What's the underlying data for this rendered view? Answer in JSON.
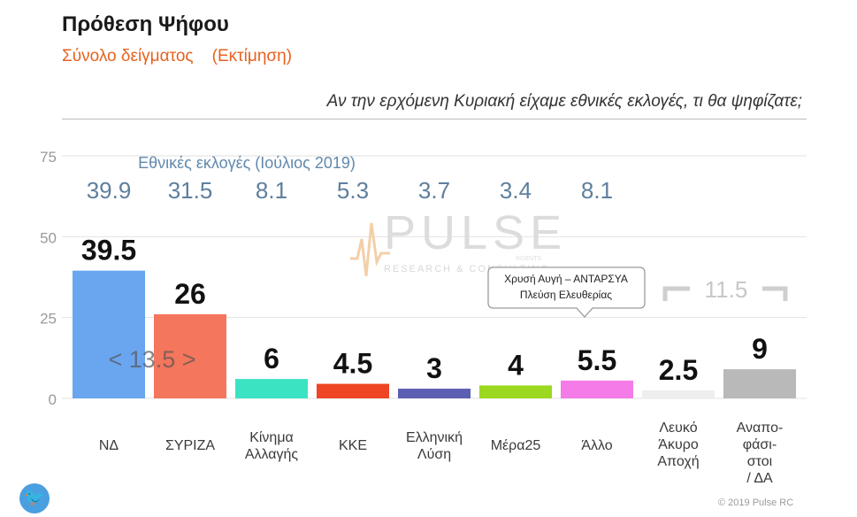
{
  "title": "Πρόθεση Ψήφου",
  "subtitle": "Σύνολο δείγματος    (Εκτίμηση)",
  "question": "Αν την ερχόμενη Κυριακή είχαμε εθνικές εκλογές, τι θα ψηφίζατε;",
  "watermark": {
    "brand": "PULSE",
    "tagline": "RESEARCH & CONSULTING",
    "sub": "RGENTS"
  },
  "copyright": "© 2019 Pulse RC",
  "twitter_icon": "twitter-icon",
  "chart_data": {
    "type": "bar",
    "categories": [
      "ΝΔ",
      "ΣΥΡΙΖΑ",
      "Κίνημα Αλλαγής",
      "ΚΚΕ",
      "Ελληνική Λύση",
      "Μέρα25",
      "Άλλο",
      "Λευκό Άκυρο Αποχή",
      "Αναποφάσιστοι / ΔΑ"
    ],
    "category_lines": [
      [
        "ΝΔ"
      ],
      [
        "ΣΥΡΙΖΑ"
      ],
      [
        "Κίνημα",
        "Αλλαγής"
      ],
      [
        "ΚΚΕ"
      ],
      [
        "Ελληνική",
        "Λύση"
      ],
      [
        "Μέρα25"
      ],
      [
        "Άλλο"
      ],
      [
        "Λευκό",
        "Άκυρο",
        "Αποχή"
      ],
      [
        "Αναπο-",
        "φάσι-",
        "στοι",
        "/ ΔΑ"
      ]
    ],
    "values": [
      39.5,
      26,
      6,
      4.5,
      3,
      4,
      5.5,
      2.5,
      9
    ],
    "value_labels": [
      "39.5",
      "26",
      "6",
      "4.5",
      "3",
      "4",
      "5.5",
      "2.5",
      "9"
    ],
    "colors": [
      "#6aa6f0",
      "#f4765c",
      "#3ce3c3",
      "#ee4524",
      "#5b5fb3",
      "#9bd81f",
      "#f57be8",
      "#eeeeee",
      "#b9b9b9"
    ],
    "ylim": [
      0,
      75
    ],
    "yticks": [
      0,
      25,
      50,
      75
    ],
    "grid": true,
    "reference": {
      "label": "Εθνικές εκλογές (Ιούλιος 2019)",
      "values": [
        "39.9",
        "31.5",
        "8.1",
        "5.3",
        "3.7",
        "3.4",
        "8.1"
      ]
    },
    "annotations": {
      "gap": "< 13.5 >",
      "bracket": "11.5",
      "tooltip_lines": [
        "Χρυσή Αυγή – ΑΝΤΑΡΣΥΑ",
        "Πλεύση Ελευθερίας"
      ]
    }
  }
}
